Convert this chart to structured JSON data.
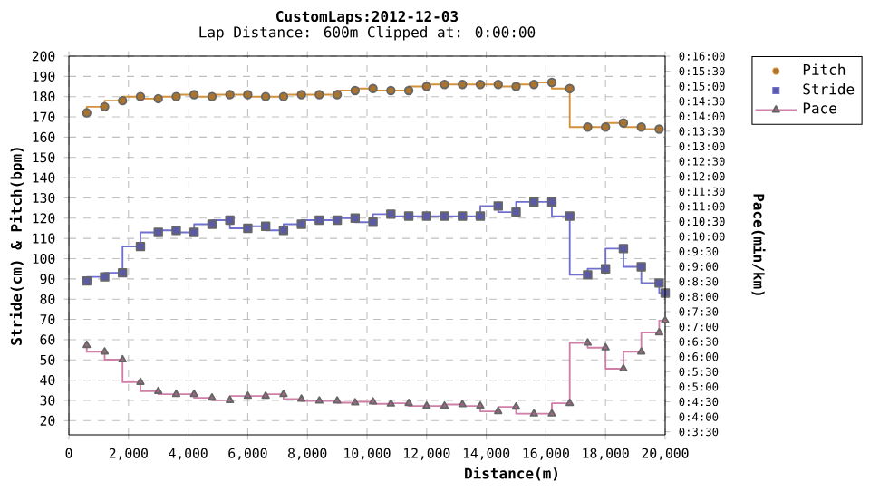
{
  "chart_data": {
    "type": "step",
    "title": "CustomLaps:2012-12-03",
    "subtitle": "Lap Distance: 600m Clipped at: 0:00:00",
    "xlabel": "Distance(m)",
    "ylabel": "Stride(cm) & Pitch(bpm)",
    "y2label": "Pace(min/km)",
    "x": [
      600,
      1200,
      1800,
      2400,
      3000,
      3600,
      4200,
      4800,
      5400,
      6000,
      6600,
      7200,
      7800,
      8400,
      9000,
      9600,
      10200,
      10800,
      11400,
      12000,
      12600,
      13200,
      13800,
      14400,
      15000,
      15600,
      16200,
      16800,
      17400,
      18000,
      18600,
      19200,
      19800
    ],
    "series": [
      {
        "name": "Pitch",
        "color": "#d4903a",
        "marker": "circle",
        "values": [
          172,
          175,
          178,
          180,
          179,
          180,
          181,
          180,
          181,
          181,
          180,
          180,
          181,
          181,
          181,
          183,
          184,
          183,
          183,
          185,
          186,
          186,
          186,
          186,
          185,
          186,
          187,
          184,
          165,
          165,
          167,
          165,
          164
        ]
      },
      {
        "name": "Stride",
        "color": "#7070d0",
        "marker": "square",
        "x": [
          600,
          1200,
          1800,
          2400,
          3000,
          3600,
          4200,
          4800,
          5400,
          6000,
          6600,
          7200,
          7800,
          8400,
          9000,
          9600,
          10200,
          10800,
          11400,
          12000,
          12600,
          13200,
          13800,
          14400,
          15000,
          15600,
          16200,
          16800,
          17400,
          18000,
          18600,
          19200,
          19800,
          20000
        ],
        "values": [
          89,
          91,
          93,
          106,
          113,
          114,
          113,
          117,
          119,
          115,
          116,
          114,
          117,
          119,
          119,
          120,
          118,
          122,
          121,
          121,
          121,
          121,
          121,
          126,
          123,
          128,
          128,
          121,
          92,
          95,
          105,
          96,
          88,
          83
        ]
      },
      {
        "name": "Pace",
        "color": "#d080a8",
        "marker": "triangle",
        "axis": "y2",
        "x": [
          600,
          1200,
          1800,
          2400,
          3000,
          3600,
          4200,
          4800,
          5400,
          6000,
          6600,
          7200,
          7800,
          8400,
          9000,
          9600,
          10200,
          10800,
          11400,
          12000,
          12600,
          13200,
          13800,
          14400,
          15000,
          15600,
          16200,
          16800,
          17400,
          18000,
          18600,
          19200,
          19800,
          20000
        ],
        "values": [
          6.38,
          6.16,
          5.9,
          5.15,
          4.85,
          4.75,
          4.75,
          4.63,
          4.55,
          4.69,
          4.69,
          4.75,
          4.59,
          4.53,
          4.53,
          4.47,
          4.5,
          4.43,
          4.45,
          4.36,
          4.36,
          4.41,
          4.36,
          4.18,
          4.33,
          4.1,
          4.1,
          4.45,
          6.46,
          6.3,
          5.6,
          6.16,
          6.8,
          7.2
        ]
      }
    ],
    "xlim": [
      0,
      20000
    ],
    "xticks": [
      0,
      {
        "value": 2000,
        "label": "2,000"
      },
      {
        "value": 4000,
        "label": "4,000"
      },
      {
        "value": 6000,
        "label": "6,000"
      },
      {
        "value": 8000,
        "label": "8,000"
      },
      {
        "value": 10000,
        "label": "10,000"
      },
      {
        "value": 12000,
        "label": "12,000"
      },
      {
        "value": 14000,
        "label": "14,000"
      },
      {
        "value": 16000,
        "label": "16,000"
      },
      {
        "value": 18000,
        "label": "18,000"
      },
      {
        "value": 20000,
        "label": "20,000"
      }
    ],
    "ylim": [
      13,
      200
    ],
    "yticks": [
      20,
      30,
      40,
      50,
      60,
      70,
      80,
      90,
      100,
      110,
      120,
      130,
      140,
      150,
      160,
      170,
      180,
      190,
      200
    ],
    "y2lim": [
      3.4,
      16
    ],
    "y2ticks": [
      {
        "value": 3.5,
        "label": "0:3:30"
      },
      {
        "value": 4,
        "label": "0:4:00"
      },
      {
        "value": 4.5,
        "label": "0:4:30"
      },
      {
        "value": 5,
        "label": "0:5:00"
      },
      {
        "value": 5.5,
        "label": "0:5:30"
      },
      {
        "value": 6,
        "label": "0:6:00"
      },
      {
        "value": 6.5,
        "label": "0:6:30"
      },
      {
        "value": 7,
        "label": "0:7:00"
      },
      {
        "value": 7.5,
        "label": "0:7:30"
      },
      {
        "value": 8,
        "label": "0:8:00"
      },
      {
        "value": 8.5,
        "label": "0:8:30"
      },
      {
        "value": 9,
        "label": "0:9:00"
      },
      {
        "value": 9.5,
        "label": "0:9:30"
      },
      {
        "value": 10,
        "label": "0:10:00"
      },
      {
        "value": 10.5,
        "label": "0:10:30"
      },
      {
        "value": 11,
        "label": "0:11:00"
      },
      {
        "value": 11.5,
        "label": "0:11:30"
      },
      {
        "value": 12,
        "label": "0:12:00"
      },
      {
        "value": 12.5,
        "label": "0:12:30"
      },
      {
        "value": 13,
        "label": "0:13:00"
      },
      {
        "value": 13.5,
        "label": "0:13:30"
      },
      {
        "value": 14,
        "label": "0:14:00"
      },
      {
        "value": 14.5,
        "label": "0:14:30"
      },
      {
        "value": 15,
        "label": "0:15:00"
      },
      {
        "value": 15.5,
        "label": "0:15:30"
      },
      {
        "value": 16,
        "label": "0:16:00"
      }
    ],
    "grid": true,
    "legend": "right",
    "line_style": "solid"
  }
}
